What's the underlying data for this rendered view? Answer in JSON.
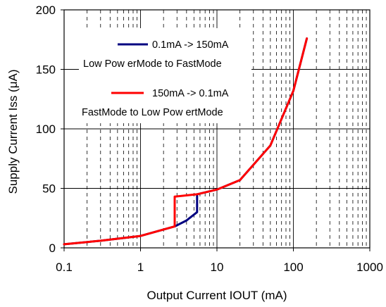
{
  "chart_data": {
    "type": "line",
    "xscale": "log",
    "xlim": [
      0.1,
      1000
    ],
    "ylim": [
      0,
      200
    ],
    "xticks": [
      0.1,
      1,
      10,
      100,
      1000
    ],
    "xtick_labels": [
      "0.1",
      "1",
      "10",
      "100",
      "1000"
    ],
    "yticks": [
      0,
      50,
      100,
      150,
      200
    ],
    "ytick_labels": [
      "0",
      "50",
      "100",
      "150",
      "200"
    ],
    "xlabel": "Output Current IOUT (mA)",
    "ylabel": "Supply Current Iss (μA)",
    "grid": true,
    "legend_position": "top-center",
    "series": [
      {
        "name_line1": "0.1mA -> 150mA",
        "name_line2": "Low Pow erMode to FastMode",
        "color": "#000080",
        "x": [
          0.1,
          0.3,
          1,
          2.8,
          4,
          5.5,
          5.5,
          10,
          20,
          50,
          100,
          150
        ],
        "y": [
          3,
          6,
          10,
          18,
          23,
          30,
          45,
          49,
          57,
          86,
          132,
          176
        ]
      },
      {
        "name_line1": "150mA -> 0.1mA",
        "name_line2": "FastMode to Low Pow ertMode",
        "color": "#ff0000",
        "x": [
          150,
          100,
          50,
          20,
          10,
          5.5,
          2.8,
          2.8,
          1,
          0.3,
          0.1
        ],
        "y": [
          176,
          132,
          86,
          57,
          49,
          45,
          43,
          18,
          10,
          6,
          3
        ]
      }
    ]
  }
}
